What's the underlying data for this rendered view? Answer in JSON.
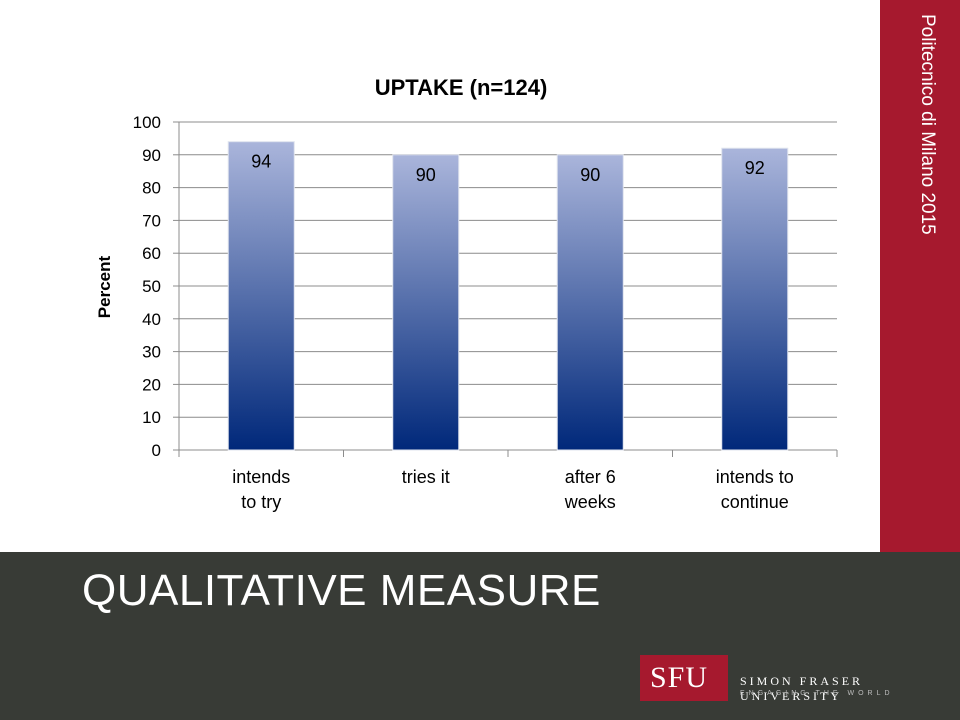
{
  "sidebar": {
    "text": "Politecnico di Milano 2015"
  },
  "footer": {
    "title": "QUALITATIVE MEASURE",
    "logo_text": "SFU",
    "university_name": "SIMON FRASER UNIVERSITY",
    "tagline": "ENGAGING THE WORLD"
  },
  "colors": {
    "accent": "#a6192e",
    "footer_bg": "#383b36",
    "bar_top": "#aab5db",
    "bar_bottom": "#00287a"
  },
  "chart_data": {
    "type": "bar",
    "title": "UPTAKE (n=124)",
    "xlabel": "",
    "ylabel": "Percent",
    "categories": [
      [
        "intends",
        "to try"
      ],
      [
        "tries it"
      ],
      [
        "after 6",
        "weeks"
      ],
      [
        "intends to",
        "continue"
      ]
    ],
    "values": [
      94,
      90,
      90,
      92
    ],
    "ylim": [
      0,
      100
    ],
    "yticks": [
      0,
      10,
      20,
      30,
      40,
      50,
      60,
      70,
      80,
      90,
      100
    ],
    "grid": true,
    "legend": "none"
  }
}
